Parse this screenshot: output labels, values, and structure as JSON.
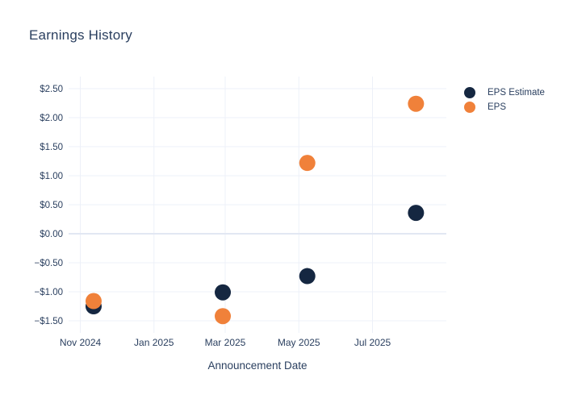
{
  "title": "Earnings History",
  "colors": {
    "background": "#ffffff",
    "text": "#2a3f5f",
    "grid": "#edf0f8",
    "zero_line": "#e2e7f3",
    "eps_estimate": "#152741",
    "eps": "#f0813a"
  },
  "legend": {
    "items": [
      {
        "label": "EPS Estimate"
      },
      {
        "label": "EPS"
      }
    ]
  },
  "chart_data": {
    "type": "scatter",
    "title": "Earnings History",
    "xlabel": "Announcement Date",
    "ylabel": "",
    "grid": true,
    "legend_position": "right",
    "marker_diameter_px": 20,
    "x_tick_labels": [
      "Nov 2024",
      "Jan 2025",
      "Mar 2025",
      "May 2025",
      "Jul 2025"
    ],
    "x_tick_dates": [
      "2024-11-01",
      "2025-01-01",
      "2025-03-01",
      "2025-05-01",
      "2025-07-01"
    ],
    "y_tick_labels": [
      "$2.50",
      "$2.00",
      "$1.50",
      "$1.00",
      "$0.50",
      "$0.00",
      "−$0.50",
      "−$1.00",
      "−$1.50"
    ],
    "y_tick_values": [
      2.5,
      2.0,
      1.5,
      1.0,
      0.5,
      0.0,
      -0.5,
      -1.0,
      -1.5
    ],
    "ylim": [
      -1.74,
      2.71
    ],
    "series": [
      {
        "name": "EPS Estimate",
        "color": "#152741",
        "points": [
          {
            "date": "2024-11-12",
            "value": -1.25
          },
          {
            "date": "2025-02-27",
            "value": -1.01
          },
          {
            "date": "2025-05-08",
            "value": -0.73
          },
          {
            "date": "2025-08-06",
            "value": 0.36
          }
        ]
      },
      {
        "name": "EPS",
        "color": "#f0813a",
        "points": [
          {
            "date": "2024-11-12",
            "value": -1.16
          },
          {
            "date": "2025-02-27",
            "value": -1.42
          },
          {
            "date": "2025-05-08",
            "value": 1.22
          },
          {
            "date": "2025-08-06",
            "value": 2.24
          }
        ]
      }
    ]
  }
}
